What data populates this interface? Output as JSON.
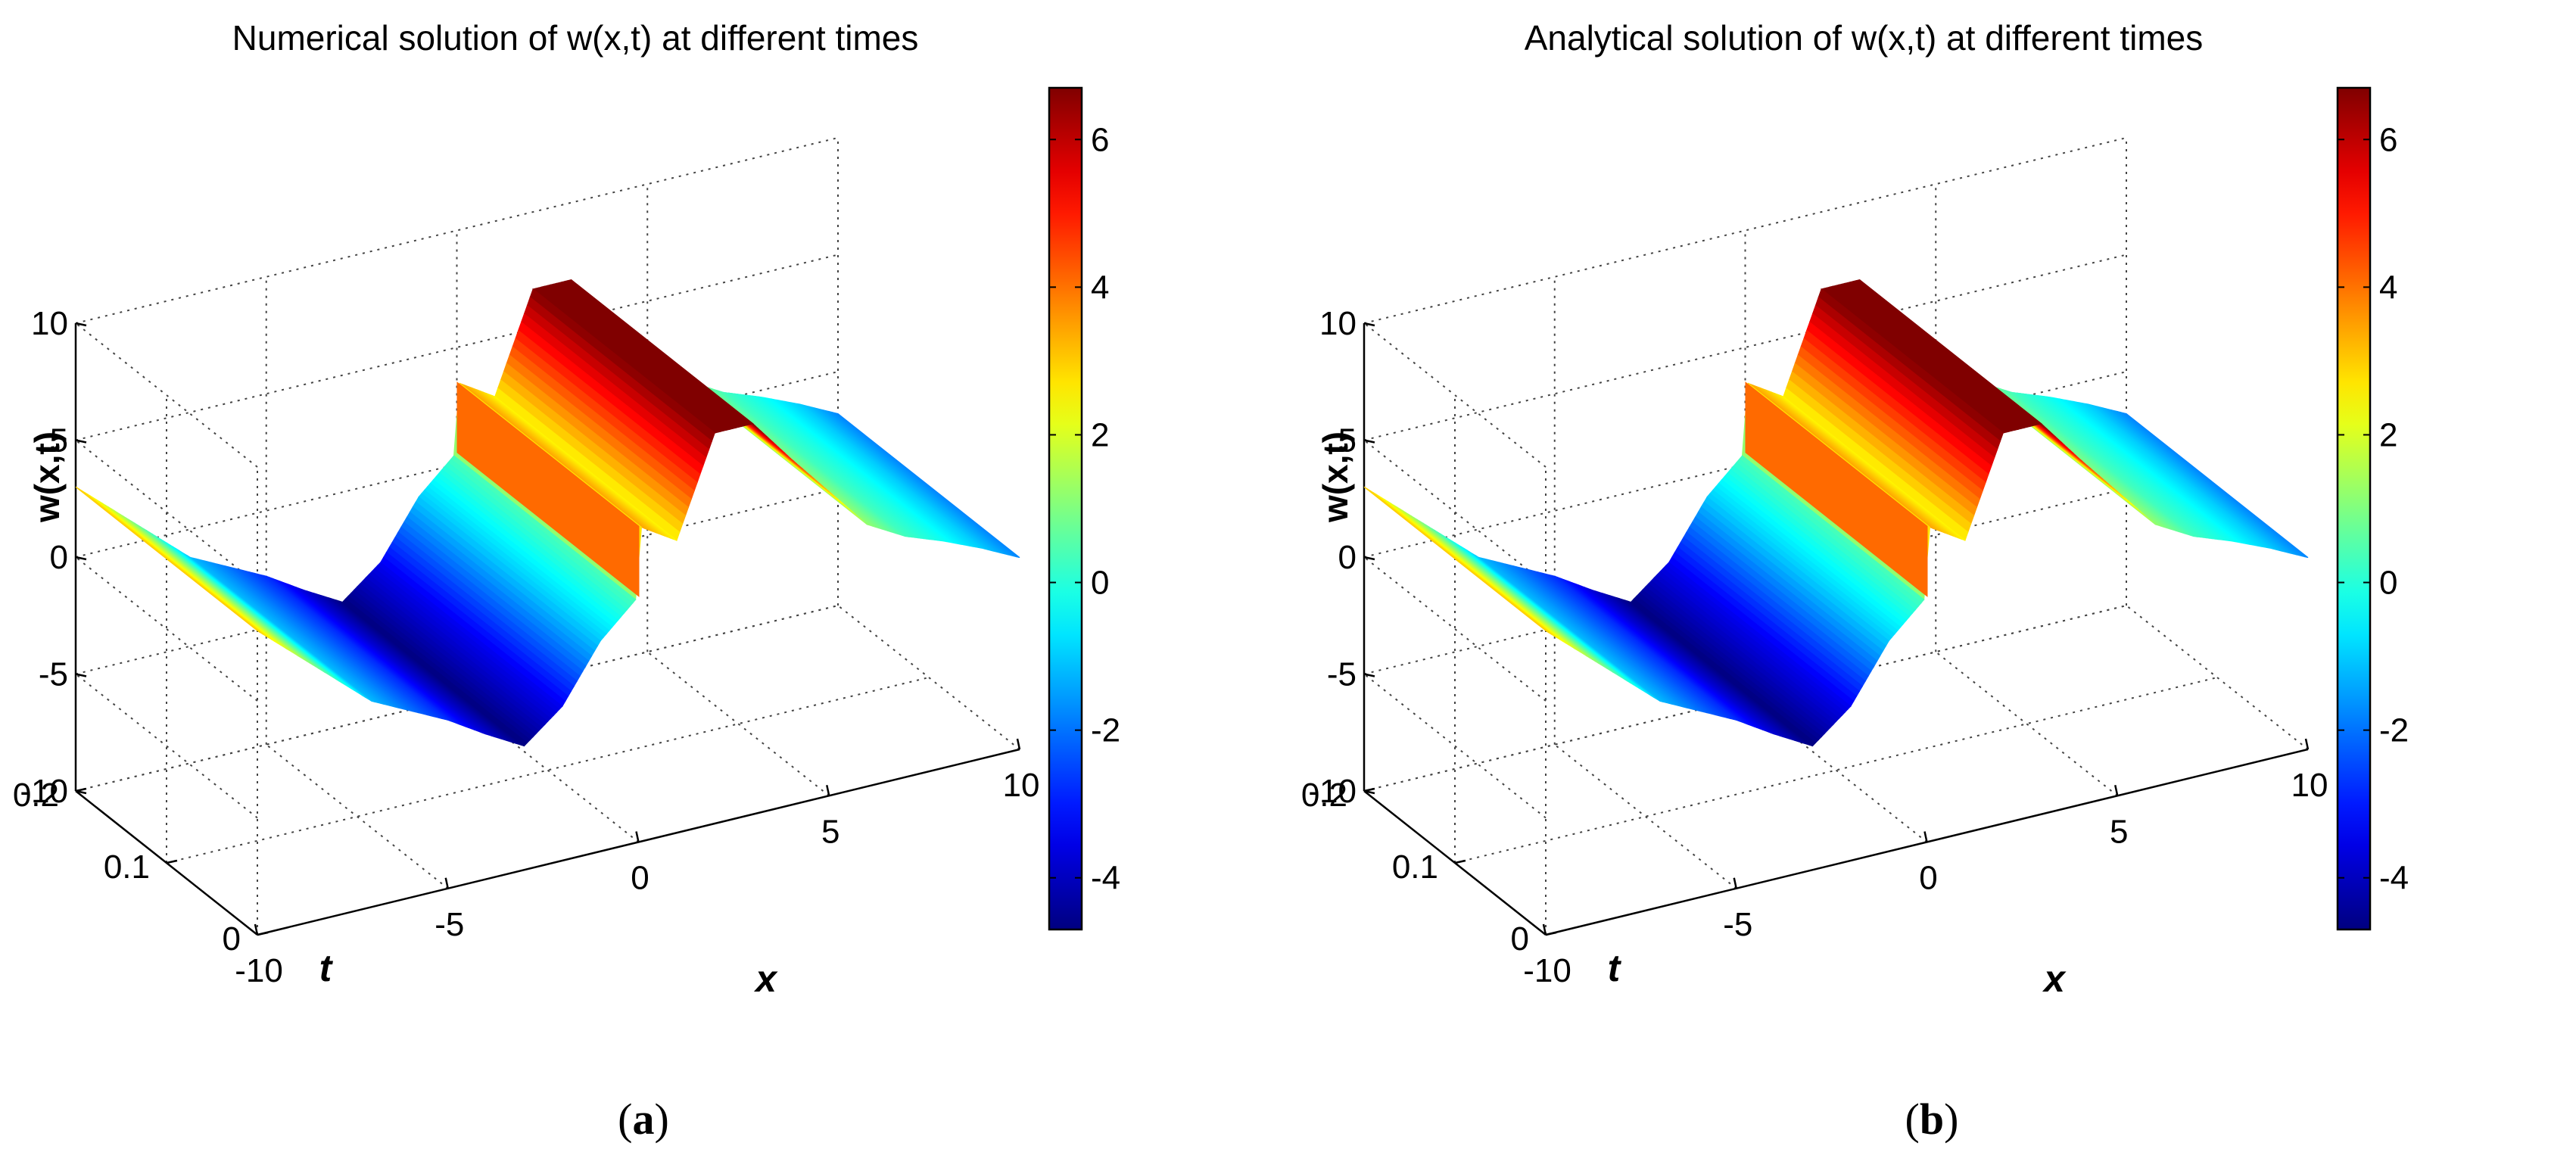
{
  "figure": {
    "panels": [
      {
        "caption_open": "(",
        "caption_letter": "a",
        "caption_close": ")"
      },
      {
        "caption_open": "(",
        "caption_letter": "b",
        "caption_close": ")"
      }
    ]
  },
  "chart_data": [
    {
      "type": "surface",
      "title": "Numerical solution of w(x,t) at different times",
      "xlabel": "x",
      "ylabel": "t",
      "zlabel": "w(x,t)",
      "xlim": [
        -10,
        10
      ],
      "ylim": [
        0,
        0.2
      ],
      "zlim": [
        -10,
        10
      ],
      "x_ticks": [
        -10,
        -5,
        0,
        5,
        10
      ],
      "x_tick_labels": [
        "-10",
        "-5",
        "0",
        "5",
        "10"
      ],
      "y_ticks": [
        0,
        0.1,
        0.2
      ],
      "y_tick_labels": [
        "0",
        "0.1",
        "0.2"
      ],
      "z_ticks": [
        -10,
        -5,
        0,
        5,
        10
      ],
      "z_tick_labels": [
        "-10",
        "-5",
        "0",
        "5",
        "10"
      ],
      "colorbar": {
        "colormap": "jet",
        "range": [
          -4.7,
          6.7
        ],
        "ticks": [
          -4,
          -2,
          0,
          2,
          4,
          6
        ],
        "tick_labels": [
          "-4",
          "-2",
          "0",
          "2",
          "4",
          "6"
        ]
      },
      "surface_profile_at_t0": {
        "x": [
          -10,
          -9,
          -8,
          -7,
          -6,
          -5,
          -4,
          -3,
          -2,
          -1,
          -0.01,
          0.01,
          1,
          2,
          3,
          4,
          5,
          6,
          7,
          8,
          9,
          10
        ],
        "w": [
          3.0,
          1.6,
          0.2,
          -1.2,
          -2.0,
          -2.8,
          -3.8,
          -4.7,
          -3.4,
          -1.0,
          0.5,
          3.5,
          2.5,
          6.7,
          6.7,
          4.8,
          3.0,
          1.2,
          0.3,
          -0.3,
          -1.0,
          -1.8
        ]
      }
    },
    {
      "type": "surface",
      "title": "Analytical solution of w(x,t) at different times",
      "xlabel": "x",
      "ylabel": "t",
      "zlabel": "w(x,t)",
      "xlim": [
        -10,
        10
      ],
      "ylim": [
        0,
        0.2
      ],
      "zlim": [
        -10,
        10
      ],
      "x_ticks": [
        -10,
        -5,
        0,
        5,
        10
      ],
      "x_tick_labels": [
        "-10",
        "-5",
        "0",
        "5",
        "10"
      ],
      "y_ticks": [
        0,
        0.1,
        0.2
      ],
      "y_tick_labels": [
        "0",
        "0.1",
        "0.2"
      ],
      "z_ticks": [
        -10,
        -5,
        0,
        5,
        10
      ],
      "z_tick_labels": [
        "-10",
        "-5",
        "0",
        "5",
        "10"
      ],
      "colorbar": {
        "colormap": "jet",
        "range": [
          -4.7,
          6.7
        ],
        "ticks": [
          -4,
          -2,
          0,
          2,
          4,
          6
        ],
        "tick_labels": [
          "-4",
          "-2",
          "0",
          "2",
          "4",
          "6"
        ]
      },
      "surface_profile_at_t0": {
        "x": [
          -10,
          -9,
          -8,
          -7,
          -6,
          -5,
          -4,
          -3,
          -2,
          -1,
          -0.01,
          0.01,
          1,
          2,
          3,
          4,
          5,
          6,
          7,
          8,
          9,
          10
        ],
        "w": [
          3.0,
          1.6,
          0.2,
          -1.2,
          -2.0,
          -2.8,
          -3.8,
          -4.7,
          -3.4,
          -1.0,
          0.5,
          3.5,
          2.5,
          6.7,
          6.7,
          4.8,
          3.0,
          1.2,
          0.3,
          -0.3,
          -1.0,
          -1.8
        ]
      }
    }
  ]
}
